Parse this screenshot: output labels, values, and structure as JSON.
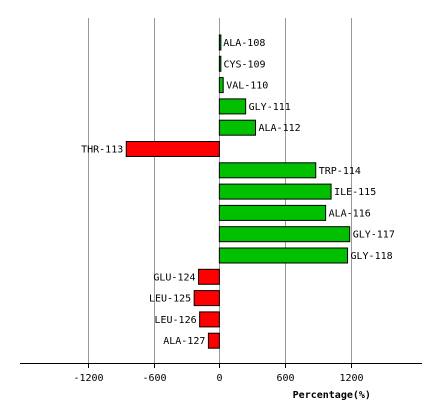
{
  "chart_data": {
    "type": "bar",
    "orientation": "horizontal",
    "xlabel": "Percentage(%)",
    "xlim": [
      -1820,
      1850
    ],
    "xticks": [
      -1200,
      -600,
      0,
      600,
      1200
    ],
    "grid": true,
    "legend": "none",
    "colors": {
      "positive": "#00c000",
      "negative": "#ff0000",
      "stroke": "#000000",
      "grid": "#999999"
    },
    "categories": [
      "ALA-108",
      "CYS-109",
      "VAL-110",
      "GLY-111",
      "ALA-112",
      "THR-113",
      "TRP-114",
      "ILE-115",
      "ALA-116",
      "GLY-117",
      "GLY-118",
      "GLU-124",
      "LEU-125",
      "LEU-126",
      "ALA-127"
    ],
    "values": [
      8,
      10,
      35,
      240,
      330,
      -850,
      880,
      1020,
      970,
      1190,
      1170,
      -190,
      -230,
      -180,
      -100
    ]
  }
}
